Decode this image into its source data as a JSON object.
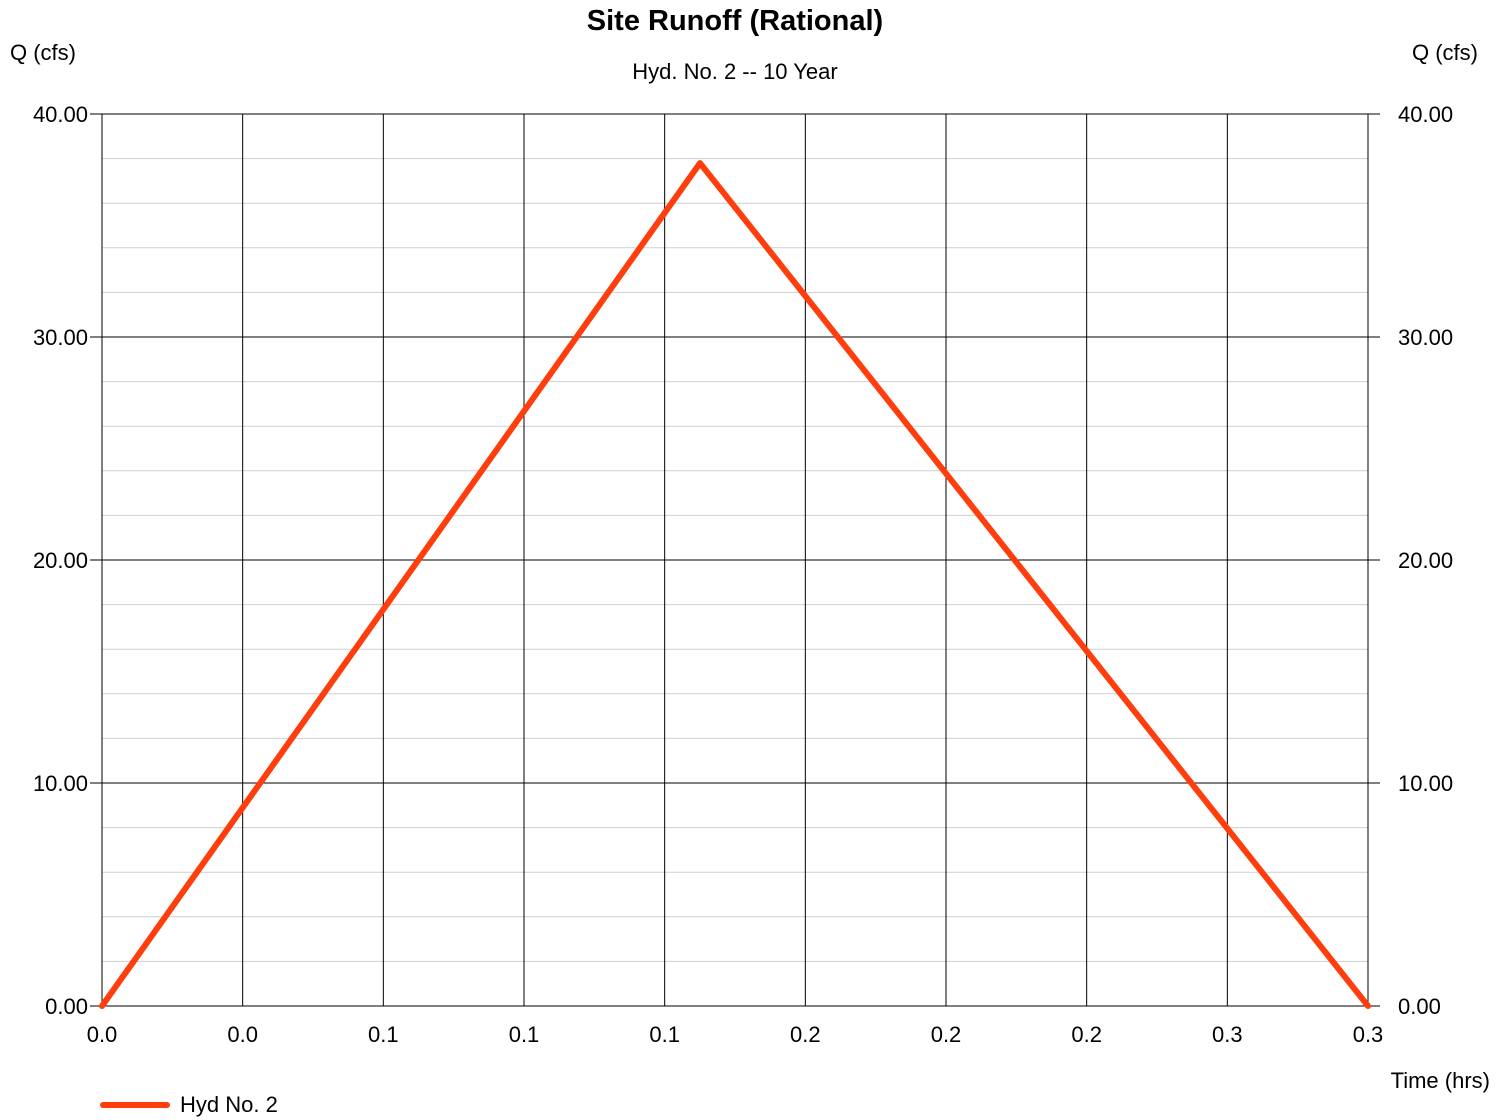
{
  "chart_data": {
    "type": "line",
    "title": "Site Runoff (Rational)",
    "subtitle": "Hyd. No. 2 -- 10 Year",
    "ylabel_left": "Q (cfs)",
    "ylabel_right": "Q (cfs)",
    "xlabel": "Time (hrs)",
    "ylim": [
      0,
      40
    ],
    "yticks": [
      "0.00",
      "10.00",
      "20.00",
      "30.00",
      "40.00"
    ],
    "y_minor_step": 2,
    "xlim": [
      0,
      0.3
    ],
    "xtick_labels": [
      "0.0",
      "0.0",
      "0.1",
      "0.1",
      "0.1",
      "0.2",
      "0.2",
      "0.2",
      "0.3",
      "0.3"
    ],
    "grid": true,
    "legend_position": "bottom-left",
    "series": [
      {
        "name": "Hyd No. 2",
        "color": "#ff3d0d",
        "x": [
          0.0,
          0.1417,
          0.3
        ],
        "y": [
          0.0,
          37.8,
          0.0
        ]
      }
    ]
  }
}
